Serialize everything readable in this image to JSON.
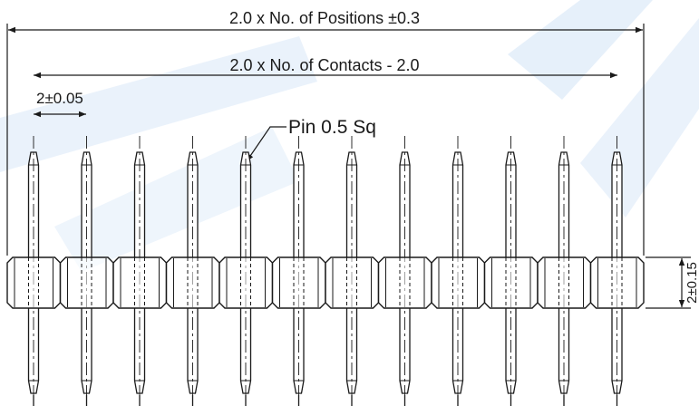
{
  "drawing": {
    "positions_dimension": "2.0 x No. of Positions ±0.3",
    "contacts_dimension": "2.0 x No. of Contacts - 2.0",
    "pitch_dimension": "2±0.05",
    "pin_callout": "Pin 0.5 Sq",
    "body_height_dimension": "2±0.15",
    "pin_count": 12
  },
  "colors": {
    "line": "#1a1a1a",
    "text": "#1a1a1a",
    "watermark": "#dbe9f7"
  }
}
